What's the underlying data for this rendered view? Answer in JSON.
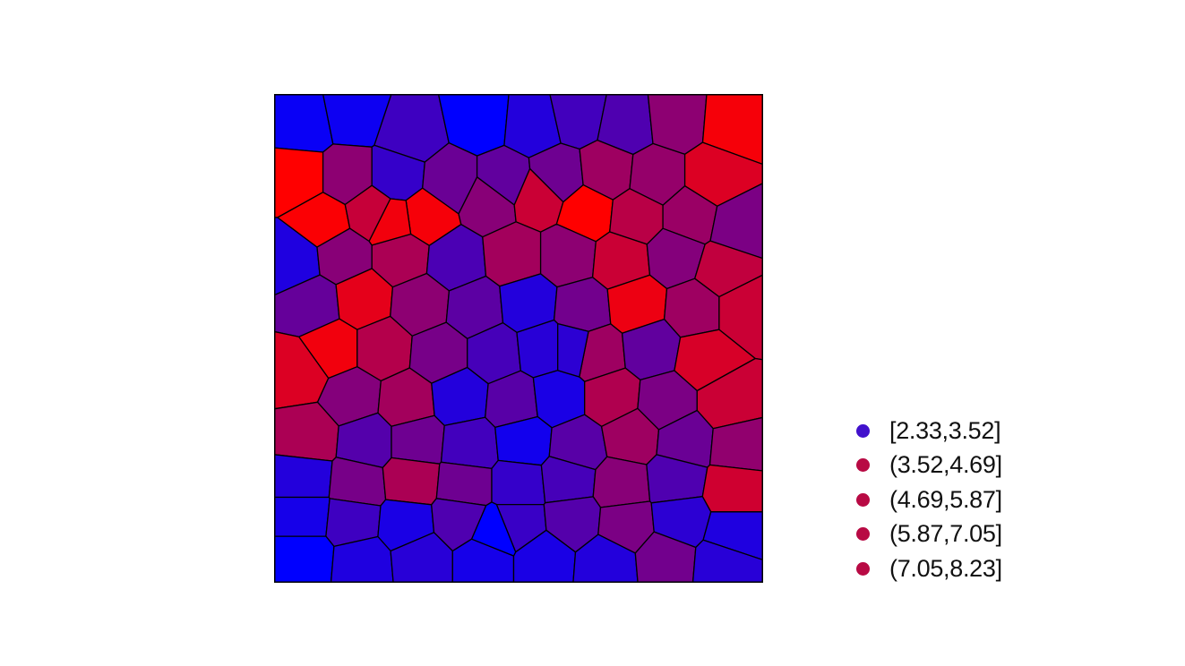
{
  "chart_data": {
    "type": "heatmap",
    "subtype": "voronoi-tessellation",
    "title": "",
    "xlabel": "",
    "ylabel": "",
    "grid": false,
    "legend_position": "right-bottom",
    "color_low": "#0000ff",
    "color_high": "#ff0000",
    "cell_border_color": "#000000",
    "legend": [
      {
        "label": "[2.33,3.52]",
        "color": "#4111cc"
      },
      {
        "label": "(3.52,4.69]",
        "color": "#b80a44"
      },
      {
        "label": "(4.69,5.87]",
        "color": "#b80a44"
      },
      {
        "label": "(5.87,7.05]",
        "color": "#b80a44"
      },
      {
        "label": "(7.05,8.23]",
        "color": "#b80a44"
      }
    ],
    "sites": [
      [
        0.06,
        0.06,
        2.6
      ],
      [
        0.16,
        0.04,
        2.7
      ],
      [
        0.28,
        0.08,
        3.8
      ],
      [
        0.42,
        0.05,
        2.4
      ],
      [
        0.53,
        0.06,
        3.2
      ],
      [
        0.62,
        0.04,
        3.9
      ],
      [
        0.72,
        0.06,
        4.2
      ],
      [
        0.82,
        0.05,
        5.6
      ],
      [
        0.94,
        0.06,
        8.0
      ],
      [
        0.05,
        0.17,
        8.2
      ],
      [
        0.15,
        0.17,
        5.6
      ],
      [
        0.25,
        0.17,
        3.6
      ],
      [
        0.36,
        0.18,
        4.8
      ],
      [
        0.47,
        0.18,
        4.6
      ],
      [
        0.58,
        0.17,
        4.9
      ],
      [
        0.68,
        0.16,
        6.0
      ],
      [
        0.78,
        0.17,
        5.8
      ],
      [
        0.9,
        0.17,
        7.4
      ],
      [
        0.1,
        0.26,
        8.1
      ],
      [
        0.2,
        0.24,
        6.9
      ],
      [
        0.31,
        0.25,
        8.0
      ],
      [
        0.44,
        0.22,
        5.5
      ],
      [
        0.54,
        0.21,
        7.0
      ],
      [
        0.64,
        0.24,
        8.2
      ],
      [
        0.74,
        0.25,
        6.6
      ],
      [
        0.85,
        0.25,
        5.9
      ],
      [
        0.95,
        0.27,
        5.2
      ],
      [
        0.04,
        0.34,
        3.1
      ],
      [
        0.14,
        0.33,
        5.5
      ],
      [
        0.26,
        0.33,
        6.3
      ],
      [
        0.37,
        0.34,
        4.1
      ],
      [
        0.49,
        0.33,
        6.1
      ],
      [
        0.6,
        0.33,
        5.6
      ],
      [
        0.71,
        0.34,
        7.0
      ],
      [
        0.82,
        0.33,
        5.4
      ],
      [
        0.92,
        0.36,
        6.8
      ],
      [
        0.08,
        0.43,
        4.7
      ],
      [
        0.18,
        0.42,
        7.6
      ],
      [
        0.3,
        0.43,
        5.6
      ],
      [
        0.41,
        0.44,
        4.5
      ],
      [
        0.52,
        0.43,
        3.2
      ],
      [
        0.63,
        0.44,
        5.0
      ],
      [
        0.74,
        0.43,
        7.8
      ],
      [
        0.86,
        0.44,
        6.0
      ],
      [
        0.96,
        0.44,
        7.0
      ],
      [
        0.12,
        0.52,
        7.9
      ],
      [
        0.22,
        0.52,
        6.5
      ],
      [
        0.34,
        0.53,
        5.1
      ],
      [
        0.45,
        0.53,
        4.0
      ],
      [
        0.55,
        0.52,
        3.3
      ],
      [
        0.66,
        0.53,
        6.0
      ],
      [
        0.77,
        0.52,
        4.6
      ],
      [
        0.88,
        0.54,
        7.3
      ],
      [
        0.05,
        0.57,
        7.4
      ],
      [
        0.16,
        0.62,
        5.4
      ],
      [
        0.27,
        0.63,
        6.1
      ],
      [
        0.38,
        0.62,
        3.2
      ],
      [
        0.49,
        0.63,
        4.4
      ],
      [
        0.58,
        0.62,
        3.0
      ],
      [
        0.69,
        0.62,
        6.4
      ],
      [
        0.8,
        0.63,
        5.2
      ],
      [
        0.93,
        0.63,
        7.0
      ],
      [
        0.07,
        0.7,
        6.3
      ],
      [
        0.19,
        0.71,
        4.3
      ],
      [
        0.29,
        0.71,
        4.9
      ],
      [
        0.4,
        0.72,
        3.9
      ],
      [
        0.51,
        0.71,
        2.8
      ],
      [
        0.62,
        0.72,
        4.4
      ],
      [
        0.73,
        0.7,
        6.0
      ],
      [
        0.84,
        0.71,
        4.8
      ],
      [
        0.95,
        0.72,
        5.7
      ],
      [
        0.06,
        0.79,
        3.2
      ],
      [
        0.17,
        0.8,
        5.1
      ],
      [
        0.28,
        0.79,
        6.3
      ],
      [
        0.39,
        0.8,
        4.9
      ],
      [
        0.5,
        0.8,
        3.6
      ],
      [
        0.6,
        0.79,
        4.0
      ],
      [
        0.71,
        0.8,
        5.5
      ],
      [
        0.82,
        0.79,
        4.2
      ],
      [
        0.94,
        0.81,
        7.1
      ],
      [
        0.06,
        0.86,
        2.9
      ],
      [
        0.16,
        0.87,
        3.8
      ],
      [
        0.27,
        0.88,
        3.0
      ],
      [
        0.38,
        0.87,
        4.2
      ],
      [
        0.5,
        0.88,
        3.7
      ],
      [
        0.61,
        0.87,
        4.3
      ],
      [
        0.72,
        0.88,
        5.2
      ],
      [
        0.83,
        0.87,
        3.4
      ],
      [
        0.94,
        0.9,
        3.1
      ],
      [
        0.06,
        0.95,
        2.4
      ],
      [
        0.18,
        0.96,
        3.1
      ],
      [
        0.3,
        0.95,
        3.3
      ],
      [
        0.43,
        0.95,
        2.9
      ],
      [
        0.55,
        0.95,
        3.0
      ],
      [
        0.68,
        0.96,
        3.2
      ],
      [
        0.8,
        0.95,
        5.0
      ],
      [
        0.92,
        0.96,
        3.3
      ],
      [
        0.24,
        0.26,
        7.9
      ],
      [
        0.61,
        0.52,
        3.4
      ],
      [
        0.45,
        0.9,
        2.4
      ]
    ]
  }
}
